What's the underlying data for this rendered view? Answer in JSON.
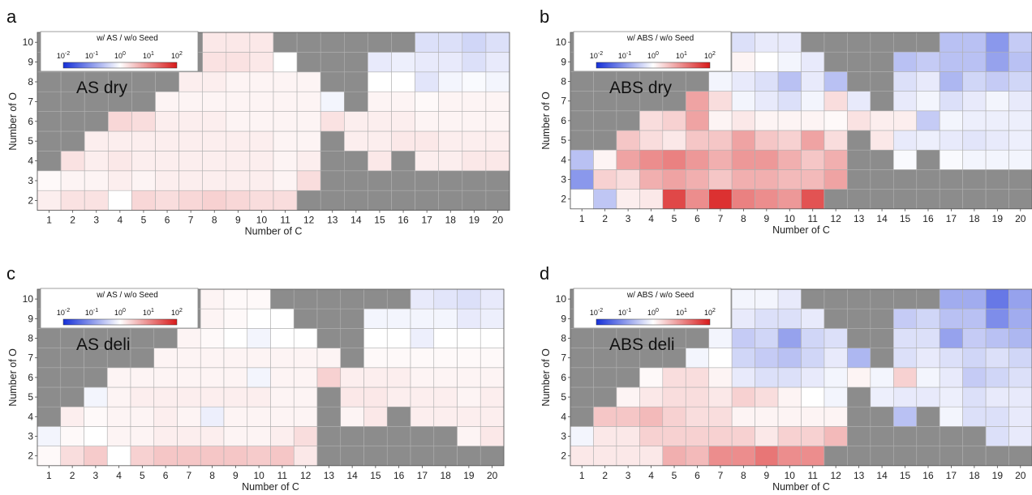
{
  "chart_data": [
    {
      "type": "heatmap",
      "panel_label": "a",
      "title": "AS dry",
      "xlabel": "Number of C",
      "ylabel": "Number of O",
      "x_categories": [
        "1",
        "2",
        "3",
        "4",
        "5",
        "6",
        "7",
        "8",
        "9",
        "10",
        "11",
        "12",
        "13",
        "14",
        "15",
        "16",
        "17",
        "18",
        "19",
        "20"
      ],
      "y_categories": [
        "2",
        "3",
        "4",
        "5",
        "6",
        "7",
        "8",
        "9",
        "10"
      ],
      "colorbar": {
        "title": "w/ AS / w/o Seed",
        "scale": "log",
        "range": [
          0.01,
          100
        ],
        "ticks": [
          "10-2",
          "10-1",
          "100",
          "101",
          "102"
        ],
        "tick_exponents": [
          -2,
          -1,
          0,
          1,
          2
        ],
        "low_color": "#1530d8",
        "mid_color": "#ffffff",
        "high_color": "#d81a1a",
        "missing_color": "#8c8c8c"
      },
      "values_log10": [
        [
          0.15,
          0.25,
          0.25,
          0.0,
          0.35,
          0.3,
          0.35,
          0.4,
          0.35,
          0.3,
          0.3,
          null,
          null,
          null,
          null,
          null,
          null,
          null,
          null,
          null
        ],
        [
          0.05,
          0.1,
          0.1,
          0.15,
          0.1,
          0.15,
          0.15,
          0.15,
          0.15,
          0.15,
          0.1,
          0.3,
          null,
          null,
          null,
          null,
          null,
          null,
          null,
          null
        ],
        [
          null,
          0.25,
          0.15,
          0.2,
          0.15,
          0.15,
          0.15,
          0.15,
          0.15,
          0.15,
          0.1,
          0.15,
          null,
          null,
          0.2,
          null,
          0.15,
          0.15,
          0.2,
          0.2
        ],
        [
          null,
          null,
          0.15,
          0.15,
          0.15,
          0.15,
          0.15,
          0.15,
          0.15,
          0.15,
          0.1,
          0.1,
          null,
          0.15,
          0.15,
          0.2,
          0.2,
          0.15,
          0.15,
          0.15
        ],
        [
          null,
          null,
          null,
          0.35,
          0.3,
          0.15,
          0.15,
          0.15,
          0.1,
          0.1,
          0.1,
          0.1,
          0.25,
          0.15,
          0.15,
          0.15,
          0.1,
          0.1,
          0.1,
          0.1
        ],
        [
          null,
          null,
          null,
          null,
          null,
          0.1,
          0.1,
          0.1,
          0.1,
          0.1,
          0.1,
          0.1,
          -0.1,
          null,
          0.1,
          0.1,
          0.05,
          0.1,
          0.1,
          0.1
        ],
        [
          null,
          null,
          null,
          null,
          null,
          null,
          0.15,
          0.15,
          0.1,
          0.1,
          0.1,
          0.1,
          null,
          null,
          0.0,
          0.0,
          -0.25,
          -0.1,
          -0.05,
          -0.1
        ],
        [
          null,
          null,
          null,
          null,
          null,
          null,
          null,
          0.25,
          0.25,
          0.2,
          0.0,
          null,
          null,
          null,
          -0.2,
          -0.15,
          -0.2,
          -0.2,
          -0.3,
          -0.2
        ],
        [
          null,
          null,
          null,
          null,
          null,
          null,
          null,
          0.2,
          0.2,
          0.2,
          null,
          null,
          null,
          null,
          null,
          null,
          -0.3,
          -0.3,
          -0.4,
          -0.3
        ]
      ]
    },
    {
      "type": "heatmap",
      "panel_label": "b",
      "title": "ABS dry",
      "xlabel": "Number of C",
      "ylabel": "Number of O",
      "x_categories": [
        "1",
        "2",
        "3",
        "4",
        "5",
        "6",
        "7",
        "8",
        "9",
        "10",
        "11",
        "12",
        "13",
        "14",
        "15",
        "16",
        "17",
        "18",
        "19",
        "20"
      ],
      "y_categories": [
        "2",
        "3",
        "4",
        "5",
        "6",
        "7",
        "8",
        "9",
        "10"
      ],
      "colorbar": {
        "title": "w/ ABS / w/o Seed",
        "scale": "log",
        "range": [
          0.01,
          100
        ],
        "ticks": [
          "10-2",
          "10-1",
          "100",
          "101",
          "102"
        ],
        "tick_exponents": [
          -2,
          -1,
          0,
          1,
          2
        ],
        "low_color": "#1530d8",
        "mid_color": "#ffffff",
        "high_color": "#d81a1a",
        "missing_color": "#8c8c8c"
      },
      "values_log10": [
        [
          0.0,
          -0.55,
          0.15,
          0.2,
          1.6,
          1.0,
          1.8,
          1.1,
          1.0,
          0.9,
          1.5,
          null,
          null,
          null,
          null,
          null,
          null,
          null,
          null,
          null
        ],
        [
          -1.0,
          0.4,
          0.3,
          0.7,
          0.8,
          0.7,
          0.5,
          0.7,
          0.7,
          0.6,
          0.6,
          0.8,
          null,
          null,
          null,
          null,
          null,
          null,
          null,
          null
        ],
        [
          -0.6,
          0.1,
          0.8,
          1.0,
          1.1,
          0.9,
          0.7,
          0.9,
          0.9,
          0.7,
          0.5,
          0.7,
          null,
          null,
          -0.05,
          null,
          -0.05,
          -0.1,
          -0.1,
          -0.1
        ],
        [
          null,
          null,
          0.5,
          0.3,
          0.2,
          0.5,
          0.5,
          0.8,
          0.5,
          0.4,
          0.8,
          0.3,
          null,
          0.2,
          -0.2,
          -0.15,
          -0.2,
          -0.25,
          -0.2,
          -0.15
        ],
        [
          null,
          null,
          null,
          0.3,
          0.4,
          0.8,
          0.1,
          0.2,
          0.1,
          0.1,
          0.1,
          0.05,
          0.25,
          0.15,
          0.15,
          -0.5,
          -0.1,
          -0.15,
          -0.15,
          -0.15
        ],
        [
          null,
          null,
          null,
          null,
          null,
          0.8,
          0.3,
          -0.1,
          -0.2,
          -0.3,
          -0.1,
          0.3,
          -0.2,
          null,
          -0.2,
          -0.1,
          -0.3,
          -0.2,
          -0.1,
          -0.2
        ],
        [
          null,
          null,
          null,
          null,
          null,
          null,
          -0.1,
          -0.2,
          -0.3,
          -0.6,
          -0.2,
          -0.6,
          null,
          null,
          -0.3,
          -0.2,
          -0.7,
          -0.4,
          -0.5,
          -0.4
        ],
        [
          null,
          null,
          null,
          null,
          null,
          null,
          null,
          0.1,
          0.0,
          -0.1,
          -0.2,
          null,
          null,
          null,
          -0.6,
          -0.5,
          -0.6,
          -0.6,
          -0.9,
          -0.6
        ],
        [
          null,
          null,
          null,
          null,
          null,
          null,
          null,
          -0.3,
          -0.2,
          -0.2,
          null,
          null,
          null,
          null,
          null,
          null,
          -0.6,
          -0.6,
          -1.0,
          -0.5
        ]
      ]
    },
    {
      "type": "heatmap",
      "panel_label": "c",
      "title": "AS deli",
      "xlabel": "Number of C",
      "ylabel": "Number of O",
      "x_categories": [
        "1",
        "2",
        "3",
        "4",
        "5",
        "6",
        "7",
        "8",
        "9",
        "10",
        "11",
        "12",
        "13",
        "14",
        "15",
        "16",
        "17",
        "18",
        "19",
        "20"
      ],
      "y_categories": [
        "2",
        "3",
        "4",
        "5",
        "6",
        "7",
        "8",
        "9",
        "10"
      ],
      "colorbar": {
        "title": "w/ AS / w/o Seed",
        "scale": "log",
        "range": [
          0.01,
          100
        ],
        "ticks": [
          "10-2",
          "10-1",
          "100",
          "101",
          "102"
        ],
        "tick_exponents": [
          -2,
          -1,
          0,
          1,
          2
        ],
        "low_color": "#1530d8",
        "mid_color": "#ffffff",
        "high_color": "#d81a1a",
        "missing_color": "#8c8c8c"
      },
      "values_log10": [
        [
          0.05,
          0.3,
          0.45,
          0.0,
          0.4,
          0.5,
          0.5,
          0.5,
          0.5,
          0.45,
          0.5,
          0.2,
          null,
          null,
          null,
          null,
          null,
          null,
          null,
          null
        ],
        [
          -0.1,
          0.05,
          0.0,
          0.1,
          0.1,
          0.15,
          0.15,
          0.15,
          0.1,
          0.1,
          0.15,
          0.3,
          null,
          null,
          null,
          null,
          null,
          null,
          0.1,
          0.2
        ],
        [
          null,
          0.15,
          0.05,
          0.1,
          0.1,
          0.15,
          0.1,
          -0.15,
          0.1,
          0.1,
          0.1,
          0.1,
          null,
          0.1,
          0.2,
          null,
          0.15,
          0.15,
          0.15,
          0.15
        ],
        [
          null,
          null,
          -0.1,
          0.1,
          0.15,
          0.15,
          0.15,
          0.15,
          0.15,
          0.15,
          0.1,
          0.1,
          null,
          0.2,
          0.2,
          0.15,
          0.15,
          0.15,
          0.1,
          0.15
        ],
        [
          null,
          null,
          null,
          0.1,
          0.1,
          0.1,
          0.1,
          0.1,
          0.1,
          -0.1,
          0.1,
          0.1,
          0.4,
          0.15,
          0.15,
          0.15,
          0.1,
          0.1,
          0.1,
          0.1
        ],
        [
          null,
          null,
          null,
          null,
          null,
          0.1,
          0.1,
          0.1,
          0.1,
          0.1,
          0.1,
          0.1,
          0.1,
          null,
          0.05,
          0.05,
          0.05,
          0.05,
          0.05,
          0.05
        ],
        [
          null,
          null,
          null,
          null,
          null,
          null,
          0.1,
          0.05,
          0.0,
          -0.1,
          0.0,
          0.0,
          null,
          null,
          0.0,
          0.0,
          -0.15,
          0.0,
          0.0,
          0.0
        ],
        [
          null,
          null,
          null,
          null,
          null,
          null,
          null,
          0.1,
          0.05,
          0.0,
          0.0,
          null,
          null,
          null,
          -0.1,
          -0.1,
          -0.1,
          -0.1,
          -0.2,
          -0.15
        ],
        [
          null,
          null,
          null,
          null,
          null,
          null,
          null,
          0.1,
          0.05,
          0.05,
          null,
          null,
          null,
          null,
          null,
          null,
          -0.2,
          -0.25,
          -0.3,
          -0.2
        ]
      ]
    },
    {
      "type": "heatmap",
      "panel_label": "d",
      "title": "ABS deli",
      "xlabel": "Number of C",
      "ylabel": "Number of O",
      "x_categories": [
        "1",
        "2",
        "3",
        "4",
        "5",
        "6",
        "7",
        "8",
        "9",
        "10",
        "11",
        "12",
        "13",
        "14",
        "15",
        "16",
        "17",
        "18",
        "19",
        "20"
      ],
      "y_categories": [
        "2",
        "3",
        "4",
        "5",
        "6",
        "7",
        "8",
        "9",
        "10"
      ],
      "colorbar": {
        "title": "w/ ABS / w/o Seed",
        "scale": "log",
        "range": [
          0.01,
          100
        ],
        "ticks": [
          "10-2",
          "10-1",
          "100",
          "101",
          "102"
        ],
        "tick_exponents": [
          -2,
          -1,
          0,
          1,
          2
        ],
        "low_color": "#1530d8",
        "mid_color": "#ffffff",
        "high_color": "#d81a1a",
        "missing_color": "#8c8c8c"
      },
      "values_log10": [
        [
          0.2,
          0.2,
          0.2,
          0.2,
          0.7,
          0.6,
          1.0,
          1.0,
          1.2,
          1.0,
          1.0,
          null,
          null,
          null,
          null,
          null,
          null,
          null,
          null,
          null
        ],
        [
          -0.1,
          0.2,
          0.2,
          0.4,
          0.4,
          0.4,
          0.4,
          0.4,
          0.2,
          0.4,
          0.4,
          0.6,
          null,
          null,
          null,
          null,
          null,
          null,
          -0.3,
          -0.2
        ],
        [
          null,
          0.5,
          0.5,
          0.6,
          0.4,
          0.3,
          0.3,
          0.1,
          0.1,
          0.1,
          0.1,
          0.1,
          null,
          null,
          -0.6,
          null,
          -0.1,
          -0.3,
          -0.3,
          -0.2
        ],
        [
          null,
          null,
          0.1,
          0.2,
          0.3,
          0.3,
          0.2,
          0.4,
          0.3,
          0.1,
          0.0,
          -0.1,
          null,
          -0.15,
          -0.2,
          -0.2,
          -0.15,
          -0.3,
          -0.2,
          -0.2
        ],
        [
          null,
          null,
          null,
          0.05,
          0.3,
          0.3,
          0.1,
          -0.2,
          -0.3,
          -0.3,
          -0.2,
          -0.1,
          0.1,
          -0.1,
          0.4,
          -0.1,
          -0.2,
          -0.5,
          -0.4,
          -0.3
        ],
        [
          null,
          null,
          null,
          null,
          null,
          -0.1,
          0.0,
          -0.4,
          -0.5,
          -0.6,
          -0.4,
          -0.2,
          -0.7,
          null,
          -0.3,
          -0.2,
          -0.3,
          -0.4,
          -0.3,
          -0.4
        ],
        [
          null,
          null,
          null,
          null,
          null,
          null,
          -0.1,
          -0.5,
          -0.4,
          -0.9,
          -0.4,
          -0.3,
          null,
          null,
          -0.3,
          -0.3,
          -0.9,
          -0.5,
          -0.6,
          -0.7
        ],
        [
          null,
          null,
          null,
          null,
          null,
          null,
          null,
          -0.2,
          -0.3,
          -0.3,
          -0.2,
          null,
          null,
          null,
          -0.5,
          -0.4,
          -0.6,
          -0.6,
          -1.1,
          -0.8
        ],
        [
          null,
          null,
          null,
          null,
          null,
          null,
          null,
          -0.1,
          -0.1,
          -0.2,
          null,
          null,
          null,
          null,
          null,
          null,
          -0.8,
          -0.8,
          -1.3,
          -0.9
        ]
      ]
    }
  ]
}
